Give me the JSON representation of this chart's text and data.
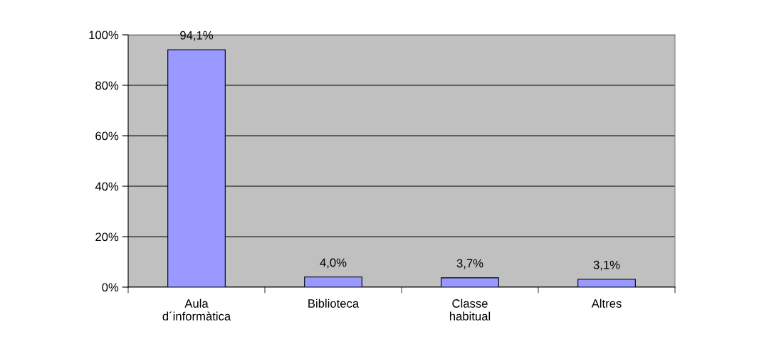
{
  "chart_data": {
    "type": "bar",
    "categories": [
      "Aula\nd´informàtica",
      "Biblioteca",
      "Classe\nhabitual",
      "Altres"
    ],
    "values": [
      94.1,
      4.0,
      3.7,
      3.1
    ],
    "color": "#9999ff",
    "value_labels": [
      "94,1%",
      "4,0%",
      "3,7%",
      "3,1%"
    ],
    "ylim": [
      0,
      100
    ],
    "yticks": [
      {
        "value": 0,
        "label": "0%"
      },
      {
        "value": 20,
        "label": "20%"
      },
      {
        "value": 40,
        "label": "40%"
      },
      {
        "value": 60,
        "label": "60%"
      },
      {
        "value": 80,
        "label": "80%"
      },
      {
        "value": 100,
        "label": "100%"
      }
    ],
    "grid": "y",
    "legend": false
  }
}
